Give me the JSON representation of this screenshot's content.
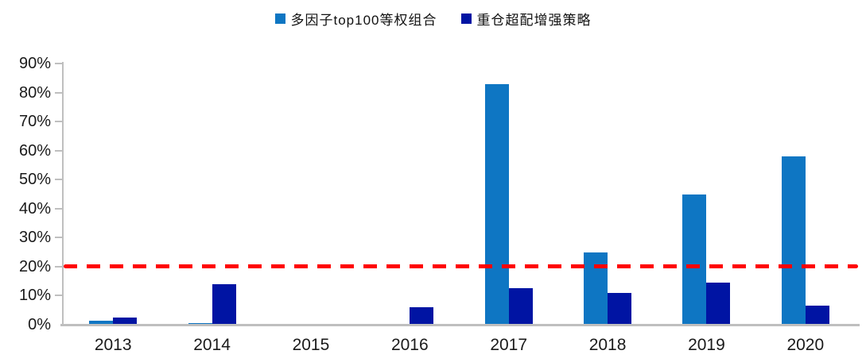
{
  "chart_data": {
    "type": "bar",
    "title": "",
    "xlabel": "",
    "ylabel": "",
    "categories": [
      "2013",
      "2014",
      "2015",
      "2016",
      "2017",
      "2018",
      "2019",
      "2020"
    ],
    "series": [
      {
        "name": "多因子top100等权组合",
        "color": "#0E76C3",
        "values": [
          1.5,
          0.5,
          0,
          0,
          83,
          25,
          45,
          58
        ]
      },
      {
        "name": "重仓超配增强策略",
        "color": "#0014A3",
        "values": [
          2.5,
          14,
          0,
          6,
          12.5,
          11,
          14.5,
          6.5
        ]
      }
    ],
    "ylim": [
      0,
      90
    ],
    "ytick_step": 10,
    "ytick_labels": [
      "0%",
      "10%",
      "20%",
      "30%",
      "40%",
      "50%",
      "60%",
      "70%",
      "80%",
      "90%"
    ],
    "ref_line": {
      "value": 20,
      "color": "#FF0000",
      "style": "dashed",
      "label": ""
    },
    "legend_position": "top",
    "grid": false,
    "axis_color": "#BFBFBF",
    "text_color": "#1A1A1A"
  }
}
